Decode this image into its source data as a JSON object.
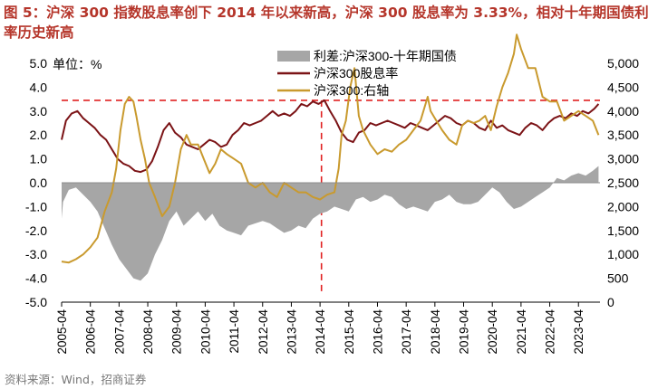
{
  "figure": {
    "title": "图 5：沪深 300 指数股息率创下 2014 年以来新高，沪深 300 股息率为 3.33%，相对十年期国债利率历史新高",
    "source": "资料来源：Wind，招商证券"
  },
  "chart_data": {
    "type": "line",
    "left_unit_label": "单位：%",
    "y_left": {
      "min": -5.0,
      "max": 5.0,
      "ticks": [
        "5.0",
        "4.0",
        "3.0",
        "2.0",
        "1.0",
        "0.0",
        "-1.0",
        "-2.0",
        "-3.0",
        "-4.0",
        "-5.0"
      ]
    },
    "y_right": {
      "min": 0,
      "max": 5000,
      "ticks": [
        "5,000",
        "4,500",
        "4,000",
        "3,500",
        "3,000",
        "2,500",
        "2,000",
        "1,500",
        "1,000",
        "500",
        "0"
      ]
    },
    "x": {
      "start": 2005.25,
      "end": 2024.0,
      "tick_values": [
        2005.25,
        2006.25,
        2007.25,
        2008.25,
        2009.25,
        2010.25,
        2011.25,
        2012.25,
        2013.25,
        2014.25,
        2015.25,
        2016.25,
        2017.25,
        2018.25,
        2019.25,
        2020.25,
        2021.25,
        2022.25,
        2023.25
      ],
      "tick_labels": [
        "2005-04",
        "2006-04",
        "2007-04",
        "2008-04",
        "2009-04",
        "2010-04",
        "2011-04",
        "2012-04",
        "2013-04",
        "2014-04",
        "2015-04",
        "2016-04",
        "2017-04",
        "2018-04",
        "2019-04",
        "2020-04",
        "2021-04",
        "2022-04",
        "2023-04"
      ]
    },
    "series": [
      {
        "name": "利差:沪深300-十年期国债",
        "kind": "area",
        "axis": "left",
        "color": "#a6a6a6",
        "x": [
          2005.25,
          2005.3,
          2005.5,
          2005.75,
          2006.0,
          2006.25,
          2006.5,
          2006.75,
          2007.0,
          2007.25,
          2007.5,
          2007.75,
          2008.0,
          2008.25,
          2008.5,
          2008.75,
          2009.0,
          2009.25,
          2009.5,
          2009.75,
          2010.0,
          2010.25,
          2010.5,
          2010.75,
          2011.0,
          2011.25,
          2011.5,
          2011.75,
          2012.0,
          2012.25,
          2012.5,
          2012.75,
          2013.0,
          2013.25,
          2013.5,
          2013.75,
          2014.0,
          2014.25,
          2014.5,
          2014.75,
          2015.0,
          2015.25,
          2015.5,
          2015.75,
          2016.0,
          2016.25,
          2016.5,
          2016.75,
          2017.0,
          2017.25,
          2017.5,
          2017.75,
          2018.0,
          2018.25,
          2018.5,
          2018.75,
          2019.0,
          2019.25,
          2019.5,
          2019.75,
          2020.0,
          2020.25,
          2020.5,
          2020.75,
          2021.0,
          2021.25,
          2021.5,
          2021.75,
          2022.0,
          2022.25,
          2022.5,
          2022.75,
          2023.0,
          2023.25,
          2023.5,
          2023.75,
          2023.95
        ],
        "values": [
          -1.5,
          -0.8,
          -0.3,
          -0.2,
          -0.5,
          -0.8,
          -1.2,
          -1.9,
          -2.6,
          -3.2,
          -3.6,
          -4.0,
          -4.1,
          -3.8,
          -3.0,
          -2.4,
          -1.6,
          -1.2,
          -1.8,
          -1.5,
          -1.2,
          -1.6,
          -1.3,
          -1.8,
          -2.0,
          -2.1,
          -2.2,
          -1.8,
          -1.7,
          -1.6,
          -1.7,
          -1.9,
          -2.1,
          -2.0,
          -1.8,
          -1.9,
          -1.5,
          -1.3,
          -1.2,
          -1.0,
          -1.1,
          -1.2,
          -0.7,
          -0.6,
          -0.8,
          -0.7,
          -0.5,
          -0.6,
          -0.9,
          -1.1,
          -1.0,
          -1.1,
          -1.2,
          -0.8,
          -0.7,
          -0.5,
          -0.8,
          -0.9,
          -0.9,
          -0.8,
          -0.5,
          -0.2,
          -0.4,
          -0.8,
          -1.1,
          -1.0,
          -0.8,
          -0.6,
          -0.4,
          -0.2,
          0.2,
          0.1,
          0.3,
          0.4,
          0.3,
          0.5,
          0.7
        ]
      },
      {
        "name": "沪深300股息率",
        "kind": "line",
        "axis": "left",
        "color": "#7b1316",
        "x": [
          2005.25,
          2005.4,
          2005.6,
          2005.8,
          2006.0,
          2006.2,
          2006.4,
          2006.6,
          2006.8,
          2007.0,
          2007.2,
          2007.4,
          2007.6,
          2007.8,
          2008.0,
          2008.2,
          2008.4,
          2008.6,
          2008.8,
          2009.0,
          2009.2,
          2009.4,
          2009.6,
          2009.8,
          2010.0,
          2010.2,
          2010.4,
          2010.6,
          2010.8,
          2011.0,
          2011.2,
          2011.4,
          2011.6,
          2011.8,
          2012.0,
          2012.2,
          2012.4,
          2012.6,
          2012.8,
          2013.0,
          2013.2,
          2013.4,
          2013.6,
          2013.8,
          2014.0,
          2014.2,
          2014.4,
          2014.6,
          2014.8,
          2015.0,
          2015.2,
          2015.4,
          2015.6,
          2015.8,
          2016.0,
          2016.2,
          2016.4,
          2016.6,
          2016.8,
          2017.0,
          2017.2,
          2017.4,
          2017.6,
          2017.8,
          2018.0,
          2018.2,
          2018.4,
          2018.6,
          2018.8,
          2019.0,
          2019.2,
          2019.4,
          2019.6,
          2019.8,
          2020.0,
          2020.2,
          2020.4,
          2020.6,
          2020.8,
          2021.0,
          2021.2,
          2021.4,
          2021.6,
          2021.8,
          2022.0,
          2022.2,
          2022.4,
          2022.6,
          2022.8,
          2023.0,
          2023.2,
          2023.4,
          2023.6,
          2023.8,
          2023.95
        ],
        "values": [
          1.8,
          2.6,
          2.9,
          3.0,
          2.7,
          2.5,
          2.3,
          2.0,
          1.8,
          1.4,
          1.0,
          0.8,
          0.7,
          0.5,
          0.45,
          0.55,
          0.9,
          1.5,
          2.2,
          2.5,
          2.1,
          1.9,
          1.6,
          1.5,
          1.4,
          1.6,
          1.8,
          1.7,
          1.5,
          1.6,
          2.0,
          2.2,
          2.5,
          2.4,
          2.5,
          2.6,
          2.8,
          3.0,
          2.8,
          2.9,
          2.8,
          3.0,
          3.3,
          3.2,
          3.4,
          3.3,
          3.45,
          3.0,
          2.6,
          2.1,
          1.8,
          1.7,
          2.1,
          2.2,
          2.5,
          2.4,
          2.5,
          2.6,
          2.5,
          2.4,
          2.3,
          2.5,
          2.4,
          2.3,
          2.2,
          2.4,
          2.6,
          2.8,
          2.7,
          2.5,
          2.4,
          2.6,
          2.5,
          2.3,
          2.2,
          2.6,
          2.3,
          2.4,
          2.2,
          2.1,
          2.0,
          2.3,
          2.5,
          2.4,
          2.2,
          2.5,
          2.7,
          2.8,
          2.7,
          2.9,
          2.8,
          3.0,
          2.9,
          3.1,
          3.3
        ]
      },
      {
        "name": "沪深300:右轴",
        "kind": "line",
        "axis": "right",
        "color": "#c99a2e",
        "x": [
          2005.25,
          2005.5,
          2005.75,
          2006.0,
          2006.25,
          2006.5,
          2006.75,
          2007.0,
          2007.15,
          2007.3,
          2007.45,
          2007.6,
          2007.75,
          2007.85,
          2008.0,
          2008.15,
          2008.3,
          2008.5,
          2008.75,
          2009.0,
          2009.2,
          2009.4,
          2009.6,
          2009.75,
          2010.0,
          2010.2,
          2010.4,
          2010.6,
          2010.8,
          2011.0,
          2011.25,
          2011.5,
          2011.75,
          2012.0,
          2012.25,
          2012.5,
          2012.75,
          2013.0,
          2013.25,
          2013.5,
          2013.75,
          2014.0,
          2014.25,
          2014.5,
          2014.75,
          2014.9,
          2015.0,
          2015.15,
          2015.3,
          2015.45,
          2015.6,
          2015.75,
          2016.0,
          2016.25,
          2016.5,
          2016.75,
          2017.0,
          2017.25,
          2017.5,
          2017.75,
          2018.0,
          2018.1,
          2018.3,
          2018.5,
          2018.75,
          2019.0,
          2019.2,
          2019.4,
          2019.6,
          2019.8,
          2020.0,
          2020.2,
          2020.4,
          2020.6,
          2020.8,
          2021.0,
          2021.1,
          2021.25,
          2021.5,
          2021.75,
          2022.0,
          2022.25,
          2022.5,
          2022.75,
          2023.0,
          2023.25,
          2023.5,
          2023.75,
          2023.95
        ],
        "values": [
          850,
          830,
          900,
          1000,
          1150,
          1350,
          1900,
          2300,
          2800,
          3600,
          4150,
          4300,
          4200,
          3900,
          3400,
          3000,
          2500,
          2200,
          1800,
          2000,
          2500,
          3200,
          3500,
          3300,
          3300,
          3000,
          2700,
          2900,
          3200,
          3100,
          3000,
          2900,
          2500,
          2400,
          2500,
          2300,
          2200,
          2500,
          2400,
          2300,
          2300,
          2200,
          2150,
          2250,
          2300,
          2800,
          3500,
          3800,
          4500,
          4900,
          3900,
          3600,
          3300,
          3100,
          3200,
          3150,
          3300,
          3400,
          3600,
          3800,
          4300,
          4000,
          3800,
          3600,
          3400,
          3300,
          3700,
          3800,
          3750,
          3800,
          3900,
          3600,
          4100,
          4500,
          4800,
          5200,
          5600,
          5300,
          4900,
          4900,
          4300,
          4200,
          4200,
          3800,
          3900,
          4000,
          3900,
          3800,
          3500
        ]
      }
    ],
    "annotations": {
      "horizontal_ref_line": {
        "value": 3.45,
        "axis": "left",
        "color": "#e02020",
        "style": "dashed"
      },
      "vertical_ref_line": {
        "x": 2014.3,
        "color": "#e02020",
        "style": "dashed"
      }
    },
    "legend": {
      "position": "top-right",
      "entries": [
        "利差:沪深300-十年期国债",
        "沪深300股息率",
        "沪深300:右轴"
      ]
    }
  }
}
